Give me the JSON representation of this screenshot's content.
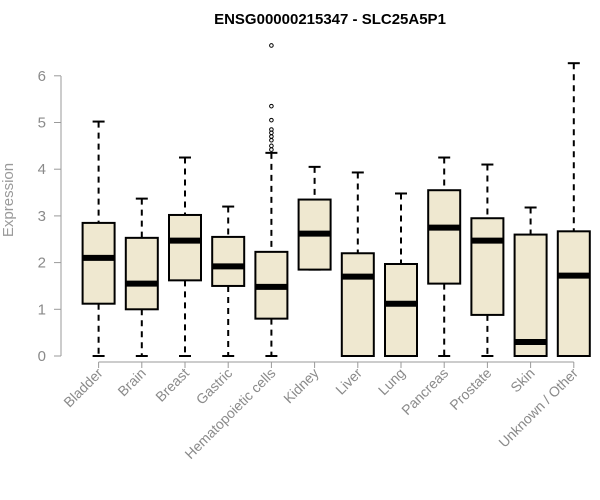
{
  "chart_data": {
    "type": "box",
    "title": "ENSG00000215347 - SLC25A5P1",
    "ylabel": "Expression",
    "xlabel": "",
    "ylim": [
      0,
      6.6
    ],
    "yticks": [
      0,
      1,
      2,
      3,
      4,
      5,
      6
    ],
    "box_fill": "#efe8d0",
    "categories": [
      "Bladder",
      "Brain",
      "Breast",
      "Gastric",
      "Hematopoietic cells",
      "Kidney",
      "Liver",
      "Lung",
      "Pancreas",
      "Prostate",
      "Skin",
      "Unknown / Other"
    ],
    "boxes": [
      {
        "min": 0,
        "q1": 1.12,
        "median": 2.1,
        "q3": 2.85,
        "max": 5.02,
        "outliers": []
      },
      {
        "min": 0,
        "q1": 1.0,
        "median": 1.55,
        "q3": 2.53,
        "max": 3.37,
        "outliers": []
      },
      {
        "min": 0,
        "q1": 1.62,
        "median": 2.47,
        "q3": 3.02,
        "max": 4.25,
        "outliers": []
      },
      {
        "min": 0,
        "q1": 1.5,
        "median": 1.92,
        "q3": 2.55,
        "max": 3.2,
        "outliers": []
      },
      {
        "min": 0,
        "q1": 0.8,
        "median": 1.48,
        "q3": 2.23,
        "max": 4.35,
        "outliers": [
          4.42,
          4.5,
          4.62,
          4.7,
          4.78,
          4.85,
          5.05,
          5.35,
          6.65
        ]
      },
      {
        "min": 1.85,
        "q1": 1.85,
        "median": 2.62,
        "q3": 3.35,
        "max": 4.05,
        "outliers": []
      },
      {
        "min": 0,
        "q1": 0,
        "median": 1.7,
        "q3": 2.2,
        "max": 3.93,
        "outliers": []
      },
      {
        "min": 0,
        "q1": 0,
        "median": 1.12,
        "q3": 1.97,
        "max": 3.48,
        "outliers": []
      },
      {
        "min": 0,
        "q1": 1.55,
        "median": 2.75,
        "q3": 3.55,
        "max": 4.25,
        "outliers": []
      },
      {
        "min": 0,
        "q1": 0.88,
        "median": 2.47,
        "q3": 2.95,
        "max": 4.1,
        "outliers": []
      },
      {
        "min": 0,
        "q1": 0,
        "median": 0.3,
        "q3": 2.6,
        "max": 3.18,
        "outliers": []
      },
      {
        "min": 0,
        "q1": 0,
        "median": 1.72,
        "q3": 2.67,
        "max": 6.27,
        "outliers": []
      }
    ]
  }
}
